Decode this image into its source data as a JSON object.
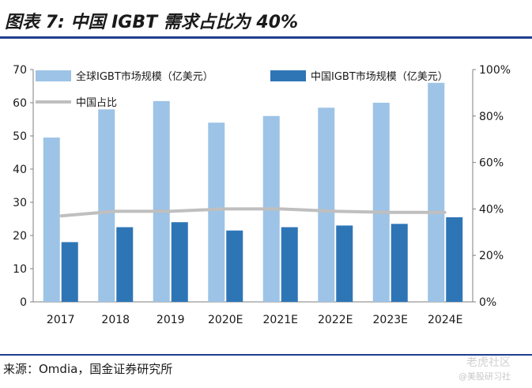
{
  "header": {
    "title": "图表 7:  中国 IGBT 需求占比为 40%"
  },
  "footer": {
    "source": "来源：Omdia，国金证券研究所"
  },
  "watermark": {
    "line1": "老虎社区",
    "line2": "@美股研习社"
  },
  "colors": {
    "global": "#9dc3e6",
    "china": "#2e75b6",
    "share": "#bfbfbf",
    "rule": "#1f3f8f"
  },
  "chart_data": {
    "type": "bar",
    "categories": [
      "2017",
      "2018",
      "2019",
      "2020E",
      "2021E",
      "2022E",
      "2023E",
      "2024E"
    ],
    "series": [
      {
        "name": "全球IGBT市场规模（亿美元）",
        "type": "bar",
        "axis": "left",
        "values": [
          49.5,
          58,
          60.5,
          54,
          56,
          58.5,
          60,
          66
        ]
      },
      {
        "name": "中国IGBT市场规模（亿美元）",
        "type": "bar",
        "axis": "left",
        "values": [
          18,
          22.5,
          24,
          21.5,
          22.5,
          23,
          23.5,
          25.5
        ]
      },
      {
        "name": "中国占比",
        "type": "line",
        "axis": "right",
        "values": [
          37,
          39,
          39,
          40,
          40,
          39,
          38.5,
          38.5
        ]
      }
    ],
    "ylim_left": [
      0,
      70
    ],
    "yticks_left": [
      "0",
      "10",
      "20",
      "30",
      "40",
      "50",
      "60",
      "70"
    ],
    "ylim_right": [
      0,
      100
    ],
    "yticks_right": [
      "0%",
      "20%",
      "40%",
      "60%",
      "80%",
      "100%"
    ],
    "grid": false,
    "legend_position": "top-left"
  }
}
